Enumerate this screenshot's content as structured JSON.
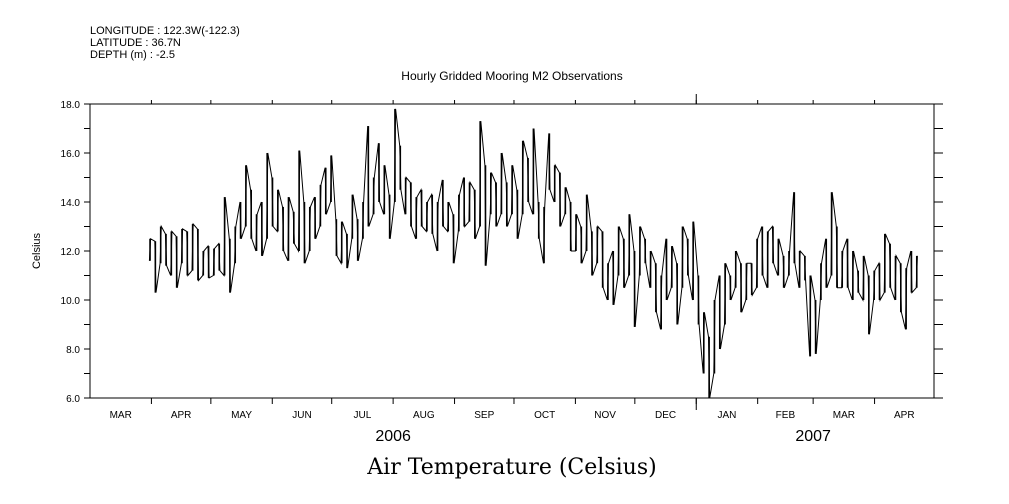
{
  "header": {
    "longitude": "LONGITUDE : 122.3W(-122.3)",
    "latitude": "LATITUDE : 36.7N",
    "depth": "DEPTH (m) : -2.5"
  },
  "chart_data": {
    "type": "line",
    "title": "Hourly Gridded Mooring M2 Observations",
    "subtitle": "Air Temperature (Celsius)",
    "ylabel": "Celsius",
    "xlabel": "",
    "ylim": [
      6.0,
      18.0
    ],
    "yticks": [
      "6.0",
      "8.0",
      "10.0",
      "12.0",
      "14.0",
      "16.0",
      "18.0"
    ],
    "xrange_days_since_2006_03_01": [
      0,
      426
    ],
    "month_ticks": [
      {
        "label": "MAR",
        "start": 0,
        "end": 31
      },
      {
        "label": "APR",
        "start": 31,
        "end": 61
      },
      {
        "label": "MAY",
        "start": 61,
        "end": 92
      },
      {
        "label": "JUN",
        "start": 92,
        "end": 122
      },
      {
        "label": "JUL",
        "start": 122,
        "end": 153
      },
      {
        "label": "AUG",
        "start": 153,
        "end": 184
      },
      {
        "label": "SEP",
        "start": 184,
        "end": 214
      },
      {
        "label": "OCT",
        "start": 214,
        "end": 245
      },
      {
        "label": "NOV",
        "start": 245,
        "end": 275
      },
      {
        "label": "DEC",
        "start": 275,
        "end": 306
      },
      {
        "label": "JAN",
        "start": 306,
        "end": 337
      },
      {
        "label": "FEB",
        "start": 337,
        "end": 365
      },
      {
        "label": "MAR",
        "start": 365,
        "end": 396
      },
      {
        "label": "APR",
        "start": 396,
        "end": 426
      }
    ],
    "years": [
      {
        "label": "2006",
        "center_day": 153
      },
      {
        "label": "2007",
        "center_day": 365
      }
    ],
    "year_boundary_day": 306,
    "series": [
      {
        "name": "Air Temperature",
        "start_day": 30,
        "end_day": 417,
        "range_pairs_low_high": [
          [
            11.6,
            12.5
          ],
          [
            10.3,
            12.4
          ],
          [
            11.5,
            13.0
          ],
          [
            11.4,
            12.7
          ],
          [
            11.0,
            12.8
          ],
          [
            10.5,
            12.6
          ],
          [
            11.5,
            12.9
          ],
          [
            11.0,
            12.8
          ],
          [
            11.2,
            13.1
          ],
          [
            10.8,
            12.9
          ],
          [
            11.0,
            12.0
          ],
          [
            10.9,
            12.2
          ],
          [
            11.0,
            12.1
          ],
          [
            11.2,
            12.3
          ],
          [
            11.0,
            14.2
          ],
          [
            10.3,
            12.5
          ],
          [
            11.5,
            13.0
          ],
          [
            12.5,
            14.0
          ],
          [
            13.0,
            15.5
          ],
          [
            12.5,
            14.5
          ],
          [
            12.0,
            13.5
          ],
          [
            11.8,
            14.0
          ],
          [
            12.5,
            16.0
          ],
          [
            13.0,
            15.0
          ],
          [
            12.8,
            14.5
          ],
          [
            12.0,
            13.8
          ],
          [
            11.6,
            14.2
          ],
          [
            12.3,
            13.6
          ],
          [
            12.0,
            16.1
          ],
          [
            11.5,
            14.0
          ],
          [
            12.0,
            13.8
          ],
          [
            12.5,
            14.2
          ],
          [
            13.0,
            14.7
          ],
          [
            13.5,
            15.4
          ],
          [
            14.0,
            15.9
          ],
          [
            11.8,
            13.3
          ],
          [
            11.5,
            13.2
          ],
          [
            11.3,
            12.7
          ],
          [
            12.5,
            14.3
          ],
          [
            11.6,
            13.3
          ],
          [
            12.5,
            14.0
          ],
          [
            13.0,
            17.1
          ],
          [
            13.5,
            15.0
          ],
          [
            14.0,
            16.4
          ],
          [
            13.5,
            15.5
          ],
          [
            12.5,
            14.3
          ],
          [
            14.0,
            17.8
          ],
          [
            14.5,
            16.3
          ],
          [
            13.5,
            15.0
          ],
          [
            13.0,
            14.8
          ],
          [
            12.5,
            14.2
          ],
          [
            13.0,
            14.5
          ],
          [
            12.8,
            14.0
          ],
          [
            12.7,
            14.3
          ],
          [
            12.0,
            14.0
          ],
          [
            13.0,
            14.9
          ],
          [
            12.8,
            14.0
          ],
          [
            11.5,
            13.5
          ],
          [
            12.8,
            14.3
          ],
          [
            13.0,
            15.0
          ],
          [
            13.2,
            14.8
          ],
          [
            12.5,
            14.5
          ],
          [
            13.0,
            17.3
          ],
          [
            11.4,
            15.5
          ],
          [
            13.5,
            15.2
          ],
          [
            13.0,
            14.8
          ],
          [
            13.5,
            16.0
          ],
          [
            13.0,
            14.8
          ],
          [
            13.5,
            15.5
          ],
          [
            12.5,
            14.5
          ],
          [
            13.5,
            16.5
          ],
          [
            14.0,
            15.8
          ],
          [
            13.5,
            17.0
          ],
          [
            12.5,
            14.0
          ],
          [
            11.5,
            13.8
          ],
          [
            14.5,
            16.8
          ],
          [
            14.0,
            15.5
          ],
          [
            13.0,
            15.2
          ],
          [
            13.5,
            14.6
          ],
          [
            12.0,
            14.0
          ],
          [
            12.0,
            13.5
          ],
          [
            11.5,
            13.0
          ],
          [
            12.0,
            14.3
          ],
          [
            11.0,
            12.8
          ],
          [
            11.5,
            13.0
          ],
          [
            10.5,
            12.8
          ],
          [
            10.0,
            11.5
          ],
          [
            9.8,
            12.0
          ],
          [
            11.0,
            13.0
          ],
          [
            10.5,
            12.5
          ],
          [
            11.0,
            13.5
          ],
          [
            8.9,
            12.0
          ],
          [
            11.0,
            13.0
          ],
          [
            11.5,
            12.5
          ],
          [
            10.5,
            12.0
          ],
          [
            9.5,
            11.5
          ],
          [
            8.8,
            11.0
          ],
          [
            10.0,
            12.5
          ],
          [
            10.5,
            12.2
          ],
          [
            9.0,
            11.5
          ],
          [
            10.5,
            13.0
          ],
          [
            11.0,
            12.5
          ],
          [
            10.0,
            13.2
          ],
          [
            9.0,
            11.0
          ],
          [
            7.0,
            9.5
          ],
          [
            6.0,
            8.5
          ],
          [
            7.0,
            10.0
          ],
          [
            8.0,
            11.0
          ],
          [
            9.0,
            11.5
          ],
          [
            10.0,
            11.0
          ],
          [
            10.5,
            12.0
          ],
          [
            9.5,
            11.5
          ],
          [
            10.0,
            11.5
          ],
          [
            10.2,
            11.5
          ],
          [
            10.5,
            12.5
          ],
          [
            11.0,
            13.0
          ],
          [
            10.5,
            12.8
          ],
          [
            11.5,
            13.0
          ],
          [
            11.0,
            12.5
          ],
          [
            10.5,
            11.8
          ],
          [
            11.0,
            12.0
          ],
          [
            11.5,
            14.4
          ],
          [
            10.5,
            12.0
          ],
          [
            10.8,
            11.8
          ],
          [
            7.7,
            11.0
          ],
          [
            7.8,
            10.0
          ],
          [
            10.0,
            11.5
          ],
          [
            10.5,
            12.5
          ],
          [
            11.0,
            14.4
          ],
          [
            10.5,
            13.0
          ],
          [
            10.5,
            12.0
          ],
          [
            10.5,
            12.5
          ],
          [
            10.0,
            12.0
          ],
          [
            10.3,
            11.2
          ],
          [
            10.0,
            11.8
          ],
          [
            8.6,
            11.0
          ],
          [
            10.0,
            11.2
          ],
          [
            10.0,
            11.5
          ],
          [
            10.3,
            12.7
          ],
          [
            10.5,
            12.3
          ],
          [
            10.0,
            11.8
          ],
          [
            9.5,
            11.5
          ],
          [
            8.8,
            11.3
          ],
          [
            10.3,
            12.0
          ],
          [
            10.5,
            11.8
          ]
        ]
      }
    ],
    "grid": false,
    "legend": "none"
  }
}
